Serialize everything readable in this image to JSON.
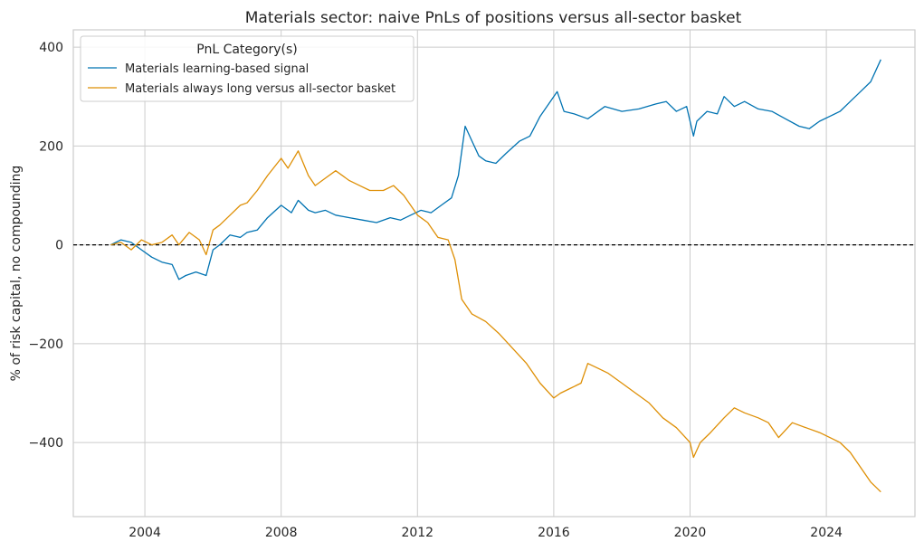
{
  "chart_data": {
    "type": "line",
    "title": "Materials sector: naive PnLs of positions versus all-sector basket",
    "xlabel": "",
    "ylabel": "% of risk capital, no compounding",
    "xlim": [
      2001.9,
      2026.6
    ],
    "ylim": [
      -550,
      435
    ],
    "x_ticks": [
      2004,
      2008,
      2012,
      2016,
      2020,
      2024
    ],
    "x_tick_labels": [
      "2004",
      "2008",
      "2012",
      "2016",
      "2020",
      "2024"
    ],
    "y_ticks": [
      400,
      200,
      0,
      -200,
      -400
    ],
    "y_tick_labels": [
      "400",
      "200",
      "0",
      "−200",
      "−400"
    ],
    "grid": true,
    "zero_line": {
      "y": 0,
      "style": "dashed",
      "color": "#000000"
    },
    "legend": {
      "title": "PnL Category(s)",
      "placement": "top-left"
    },
    "series": [
      {
        "name": "Materials learning-based signal",
        "color": "#0173b2",
        "x": [
          2003.0,
          2003.3,
          2003.6,
          2003.9,
          2004.2,
          2004.5,
          2004.8,
          2005.0,
          2005.2,
          2005.5,
          2005.8,
          2006.0,
          2006.2,
          2006.5,
          2006.8,
          2007.0,
          2007.3,
          2007.6,
          2008.0,
          2008.3,
          2008.5,
          2008.8,
          2009.0,
          2009.3,
          2009.6,
          2010.0,
          2010.4,
          2010.8,
          2011.2,
          2011.5,
          2011.8,
          2012.1,
          2012.4,
          2012.7,
          2013.0,
          2013.2,
          2013.4,
          2013.6,
          2013.8,
          2014.0,
          2014.3,
          2014.6,
          2015.0,
          2015.3,
          2015.6,
          2015.9,
          2016.1,
          2016.3,
          2016.6,
          2017.0,
          2017.5,
          2018.0,
          2018.5,
          2019.0,
          2019.3,
          2019.6,
          2019.9,
          2020.1,
          2020.2,
          2020.5,
          2020.8,
          2021.0,
          2021.3,
          2021.6,
          2022.0,
          2022.4,
          2022.8,
          2023.2,
          2023.5,
          2023.8,
          2024.1,
          2024.4,
          2024.7,
          2025.0,
          2025.3,
          2025.6
        ],
        "values": [
          0,
          10,
          5,
          -10,
          -25,
          -35,
          -40,
          -70,
          -62,
          -55,
          -62,
          -10,
          0,
          20,
          15,
          25,
          30,
          55,
          80,
          65,
          90,
          70,
          65,
          70,
          60,
          55,
          50,
          45,
          55,
          50,
          60,
          70,
          65,
          80,
          95,
          140,
          240,
          210,
          180,
          170,
          165,
          185,
          210,
          220,
          260,
          290,
          310,
          270,
          265,
          255,
          280,
          270,
          275,
          285,
          290,
          270,
          280,
          220,
          250,
          270,
          265,
          300,
          280,
          290,
          275,
          270,
          255,
          240,
          235,
          250,
          260,
          270,
          290,
          310,
          330,
          375
        ]
      },
      {
        "name": "Materials always long versus all-sector basket",
        "color": "#de8f05",
        "x": [
          2003.0,
          2003.3,
          2003.6,
          2003.9,
          2004.2,
          2004.5,
          2004.8,
          2005.0,
          2005.3,
          2005.6,
          2005.8,
          2006.0,
          2006.2,
          2006.5,
          2006.8,
          2007.0,
          2007.3,
          2007.6,
          2008.0,
          2008.2,
          2008.5,
          2008.8,
          2009.0,
          2009.3,
          2009.6,
          2010.0,
          2010.3,
          2010.6,
          2011.0,
          2011.3,
          2011.6,
          2012.0,
          2012.3,
          2012.6,
          2012.9,
          2013.1,
          2013.3,
          2013.6,
          2014.0,
          2014.4,
          2014.8,
          2015.2,
          2015.6,
          2016.0,
          2016.2,
          2016.5,
          2016.8,
          2017.0,
          2017.3,
          2017.6,
          2018.0,
          2018.4,
          2018.8,
          2019.2,
          2019.6,
          2020.0,
          2020.1,
          2020.3,
          2020.6,
          2021.0,
          2021.3,
          2021.6,
          2022.0,
          2022.3,
          2022.6,
          2023.0,
          2023.4,
          2023.8,
          2024.1,
          2024.4,
          2024.7,
          2025.0,
          2025.3,
          2025.6
        ],
        "values": [
          0,
          5,
          -10,
          10,
          0,
          5,
          20,
          0,
          25,
          10,
          -20,
          30,
          40,
          60,
          80,
          85,
          110,
          140,
          175,
          155,
          190,
          140,
          120,
          135,
          150,
          130,
          120,
          110,
          110,
          120,
          100,
          60,
          45,
          15,
          10,
          -30,
          -110,
          -140,
          -155,
          -180,
          -210,
          -240,
          -280,
          -310,
          -300,
          -290,
          -280,
          -240,
          -250,
          -260,
          -280,
          -300,
          -320,
          -350,
          -370,
          -400,
          -430,
          -400,
          -380,
          -350,
          -330,
          -340,
          -350,
          -360,
          -390,
          -360,
          -370,
          -380,
          -390,
          -400,
          -420,
          -450,
          -480,
          -500
        ]
      }
    ]
  }
}
